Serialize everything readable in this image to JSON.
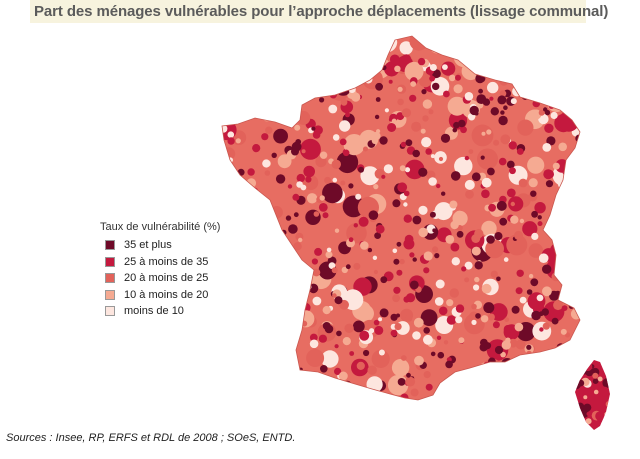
{
  "title": "Part des ménages vulnérables pour l’approche déplacements (lissage communal)",
  "legend": {
    "title": "Taux de vulnérabilité (%)",
    "items": [
      {
        "label": "35 et plus",
        "color": "#6e0a28"
      },
      {
        "label": "25 à moins de 35",
        "color": "#c4193e"
      },
      {
        "label": "20 à moins de 25",
        "color": "#e2625a"
      },
      {
        "label": "10 à moins de 20",
        "color": "#f5aa92"
      },
      {
        "label": "moins de 10",
        "color": "#fde6df"
      }
    ]
  },
  "source": "Sources : Insee, RP, ERFS et RDL de 2008 ; SOeS, ENTD."
}
